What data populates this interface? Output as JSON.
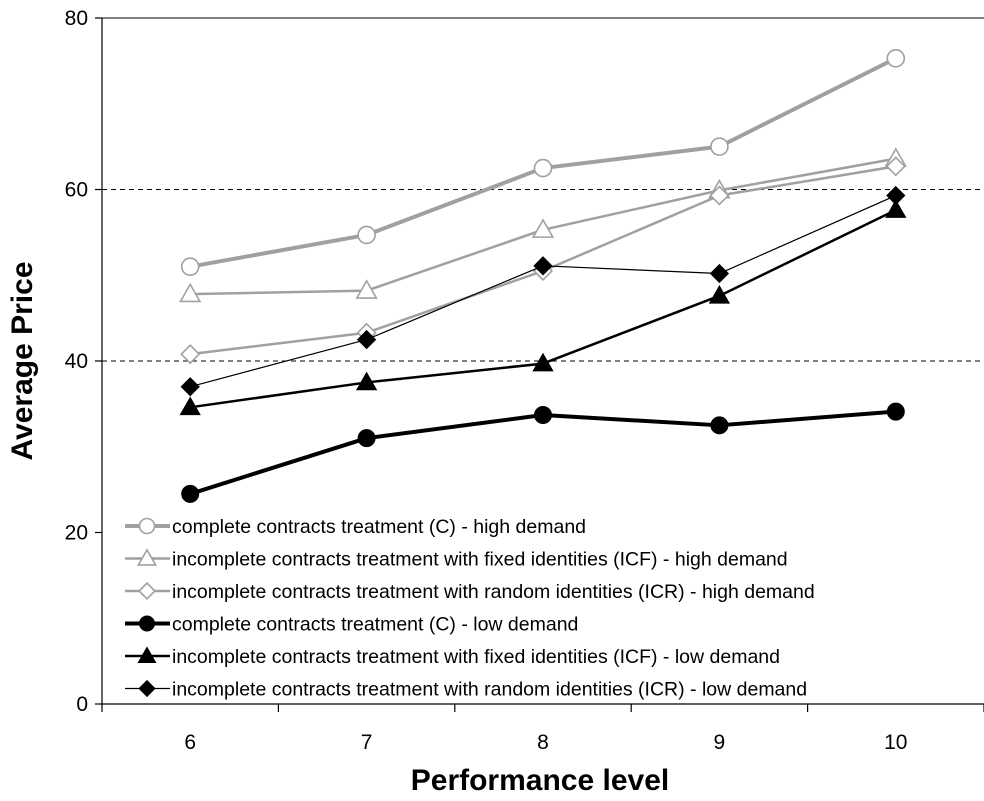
{
  "chart_data": {
    "type": "line",
    "title": "",
    "xlabel": "Performance level",
    "ylabel": "Average Price",
    "categories": [
      "6",
      "7",
      "8",
      "9",
      "10"
    ],
    "ylim": [
      0,
      80
    ],
    "yticks": [
      "0",
      "20",
      "40",
      "60",
      "80"
    ],
    "grid": "dashed horizontal lines at 40 and 60",
    "legend_position": "bottom-left inside plot",
    "series": [
      {
        "name": "complete contracts treatment (C) - high demand",
        "values": [
          51,
          54.7,
          62.5,
          65,
          75.3
        ],
        "color": "#a0a0a0",
        "marker": "circle",
        "filled": false,
        "stroke_width": 4
      },
      {
        "name": "incomplete contracts treatment with fixed identities (ICF) - high demand",
        "values": [
          47.8,
          48.2,
          55.3,
          59.9,
          63.6
        ],
        "color": "#a0a0a0",
        "marker": "triangle",
        "filled": false,
        "stroke_width": 2.5
      },
      {
        "name": "incomplete contracts treatment with random identities (ICR) - high demand",
        "values": [
          40.8,
          43.3,
          50.5,
          59.3,
          62.7
        ],
        "color": "#a0a0a0",
        "marker": "diamond",
        "filled": false,
        "stroke_width": 2.5
      },
      {
        "name": "complete contracts treatment (C) - low demand",
        "values": [
          24.5,
          31,
          33.7,
          32.5,
          34.1
        ],
        "color": "#000000",
        "marker": "circle",
        "filled": true,
        "stroke_width": 4
      },
      {
        "name": "incomplete contracts treatment with fixed identities (ICF) - low demand",
        "values": [
          34.6,
          37.5,
          39.7,
          47.6,
          57.6
        ],
        "color": "#000000",
        "marker": "triangle",
        "filled": true,
        "stroke_width": 2.5
      },
      {
        "name": "incomplete contracts treatment with random identities (ICR) - low demand",
        "values": [
          37,
          42.5,
          51.1,
          50.2,
          59.3
        ],
        "color": "#000000",
        "marker": "diamond",
        "filled": true,
        "stroke_width": 1.2
      }
    ]
  }
}
